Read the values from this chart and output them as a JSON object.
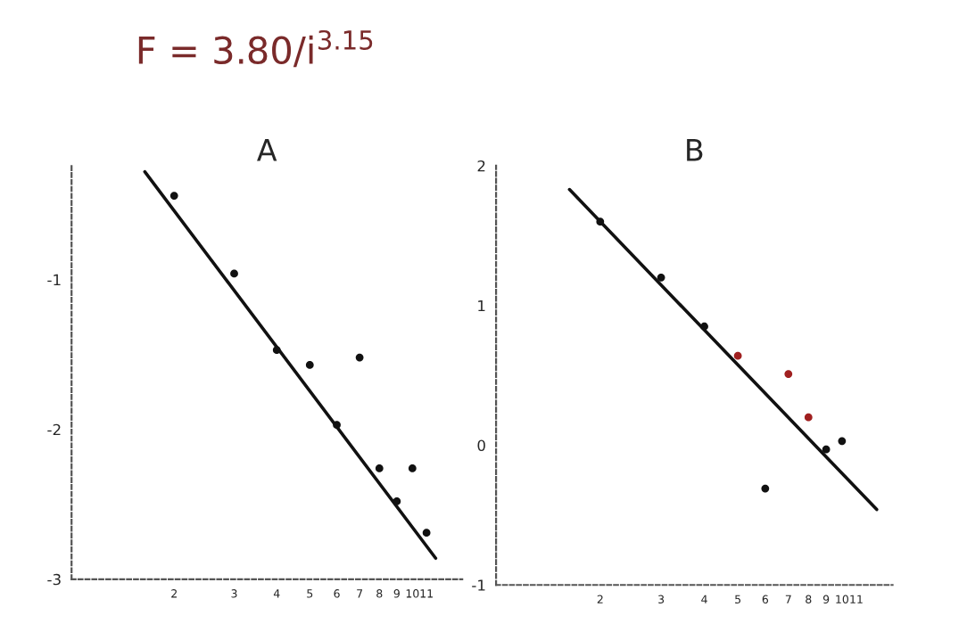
{
  "chart_data": [
    {
      "type": "scatter",
      "title": "A",
      "annotations": [
        "F = 3.80/i$^{3.15}$"
      ],
      "log": "x",
      "grid": false,
      "legend": false,
      "xlim": [
        1,
        14
      ],
      "xticks": [
        2,
        3,
        4,
        5,
        6,
        7,
        8,
        9,
        10,
        11
      ],
      "ylim": [
        -3,
        -0.24
      ],
      "yticks": [
        -1,
        -2,
        -3
      ],
      "series": [
        {
          "marker": "circle",
          "color": "#111111",
          "x": [
            2,
            3,
            4,
            5,
            6,
            7,
            8,
            9,
            10,
            11
          ],
          "values": [
            -0.44,
            -0.96,
            -1.47,
            -1.57,
            -1.97,
            -1.52,
            -2.26,
            -2.48,
            -2.26,
            -2.69
          ]
        },
        {
          "type": "line",
          "marker": "none",
          "color": "#111111",
          "x": [
            1.64,
            11.7
          ],
          "values": [
            -0.28,
            -2.86
          ]
        }
      ]
    },
    {
      "type": "scatter",
      "title": "B",
      "log": "x",
      "grid": false,
      "legend": false,
      "xlim": [
        1,
        14
      ],
      "xticks": [
        2,
        3,
        4,
        5,
        6,
        7,
        8,
        9,
        10,
        11
      ],
      "ylim": [
        -1,
        2
      ],
      "yticks": [
        2,
        1,
        0,
        -1
      ],
      "series": [
        {
          "marker": "circle",
          "colors": [
            "#111111",
            "#111111",
            "#111111",
            "#a02020",
            "#111111",
            "#a02020",
            "#a02020",
            "#111111",
            "#111111"
          ],
          "x": [
            2,
            3,
            4,
            5,
            6,
            7,
            8,
            9,
            10
          ],
          "values": [
            1.6,
            1.2,
            0.85,
            0.64,
            -0.31,
            0.51,
            0.2,
            -0.03,
            0.03
          ]
        },
        {
          "type": "line",
          "marker": "none",
          "color": "#111111",
          "x": [
            1.63,
            12.6
          ],
          "values": [
            1.83,
            -0.46
          ]
        }
      ]
    }
  ]
}
